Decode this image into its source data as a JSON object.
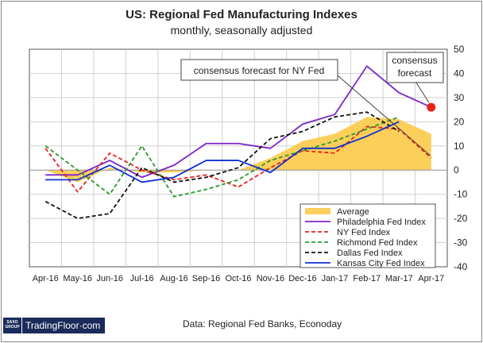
{
  "title": "US: Regional Fed Manufacturing Indexes",
  "subtitle": "monthly, seasonally adjusted",
  "source": "Data: Regional Fed Banks, Econoday",
  "logo": {
    "group": "SAXO GROUP",
    "name": "TradingFloor·com"
  },
  "chart_data": {
    "type": "line",
    "title": "US: Regional Fed Manufacturing Indexes",
    "subtitle": "monthly, seasonally adjusted",
    "categories": [
      "Apr-16",
      "May-16",
      "Jun-16",
      "Jul-16",
      "Aug-16",
      "Sep-16",
      "Oct-16",
      "Nov-16",
      "Dec-16",
      "Jan-17",
      "Feb-17",
      "Mar-17",
      "Apr-17"
    ],
    "ylim": [
      -40,
      50
    ],
    "yticks": [
      -40,
      -30,
      -20,
      -10,
      0,
      10,
      20,
      30,
      40,
      50
    ],
    "y_axis_side": "right",
    "grid": true,
    "series": [
      {
        "name": "Average",
        "kind": "area",
        "color": "#fccf5a",
        "values": [
          0,
          -5,
          1,
          -1,
          -1,
          0,
          0,
          5,
          12,
          15,
          22,
          21,
          15
        ]
      },
      {
        "name": "Philadelphia Fed Index",
        "color": "#7b26c8",
        "values": [
          -2,
          -2,
          4,
          -3,
          2,
          11,
          11,
          9,
          19,
          23,
          43,
          32,
          26
        ]
      },
      {
        "name": "NY Fed Index",
        "color": "#e8231c",
        "dash": true,
        "values": [
          9,
          -9,
          7,
          0,
          -4,
          -2,
          -7,
          1,
          8,
          7,
          18,
          17,
          5
        ]
      },
      {
        "name": "Richmond Fed Index",
        "color": "#2a9a2a",
        "dash": true,
        "values": [
          10,
          0,
          -10,
          10,
          -11,
          -8,
          -4,
          4,
          8,
          12,
          17,
          22,
          null
        ]
      },
      {
        "name": "Dallas Fed Index",
        "color": "#111111",
        "dash": true,
        "values": [
          -13,
          -20,
          -18,
          1,
          -5,
          -3,
          1,
          13,
          16,
          22,
          24,
          16,
          null
        ]
      },
      {
        "name": "Kansas City Fed Index",
        "color": "#1030d0",
        "values": [
          -4,
          -4,
          2,
          -5,
          -3,
          4,
          4,
          -1,
          9,
          9,
          14,
          20,
          null
        ]
      }
    ],
    "forecast": {
      "label": "consensus\nforecast",
      "month": "Apr-17",
      "value": 26,
      "color": "#e8231c"
    },
    "annotation": {
      "text": "consensus forecast for NY Fed",
      "month": "Apr-17",
      "value": 5
    },
    "legend_position": "bottom-right"
  }
}
